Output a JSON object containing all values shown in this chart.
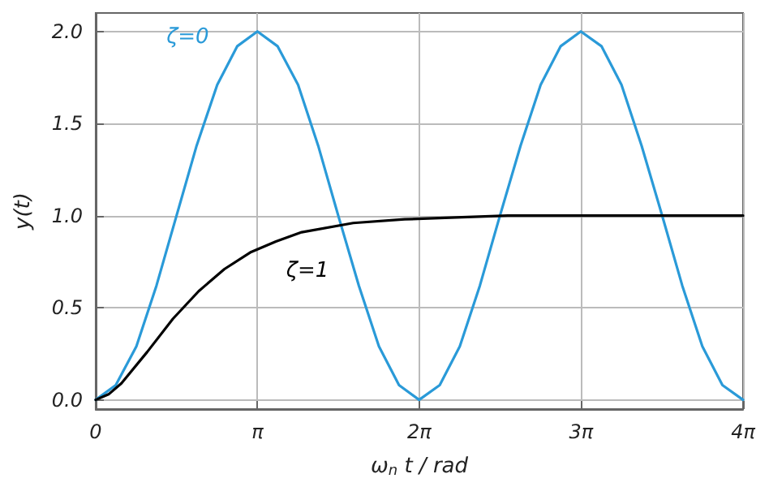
{
  "chart_data": {
    "type": "line",
    "xlabel": "ω$_{n}$ t / rad",
    "ylabel": "y(t)",
    "xlim": [
      0,
      12.57
    ],
    "xticks": [
      {
        "value": 0,
        "label": "0"
      },
      {
        "value": 3.1416,
        "label": "π"
      },
      {
        "value": 6.2832,
        "label": "2π"
      },
      {
        "value": 9.4248,
        "label": "3π"
      },
      {
        "value": 12.57,
        "label": "4π"
      }
    ],
    "ylim": [
      -0.05,
      2.1
    ],
    "yticks": [
      {
        "value": 0,
        "label": "0.0"
      },
      {
        "value": 0.5,
        "label": "0.5"
      },
      {
        "value": 1,
        "label": "1.0"
      },
      {
        "value": 1.5,
        "label": "1.5"
      },
      {
        "value": 2,
        "label": "2.0"
      }
    ],
    "grid": true,
    "legend": false,
    "marker": "none",
    "line_style": "solid",
    "series": [
      {
        "name": "ζ=0",
        "color": "#2a9ad8",
        "x": [
          0,
          0.39,
          0.79,
          1.18,
          1.57,
          1.96,
          2.36,
          2.75,
          3.14,
          3.53,
          3.93,
          4.32,
          4.71,
          5.11,
          5.5,
          5.89,
          6.28,
          6.68,
          7.07,
          7.46,
          7.85,
          8.25,
          8.64,
          9.03,
          9.42,
          9.82,
          10.21,
          10.6,
          11,
          11.39,
          11.78,
          12.17,
          12.57
        ],
        "values": [
          0,
          0.08,
          0.29,
          0.62,
          1,
          1.38,
          1.71,
          1.92,
          2,
          1.92,
          1.71,
          1.38,
          1,
          0.62,
          0.29,
          0.08,
          0,
          0.08,
          0.29,
          0.62,
          1,
          1.38,
          1.71,
          1.92,
          2,
          1.92,
          1.71,
          1.38,
          1,
          0.62,
          0.29,
          0.08,
          0
        ]
      },
      {
        "name": "ζ=1",
        "color": "#000000",
        "x": [
          0,
          0.25,
          0.5,
          1,
          1.5,
          2,
          2.5,
          3,
          3.5,
          4,
          5,
          6,
          7,
          8,
          10,
          12.57
        ],
        "values": [
          0,
          0.03,
          0.09,
          0.26,
          0.44,
          0.59,
          0.71,
          0.8,
          0.86,
          0.91,
          0.96,
          0.98,
          0.99,
          1,
          1,
          1
        ]
      }
    ]
  }
}
